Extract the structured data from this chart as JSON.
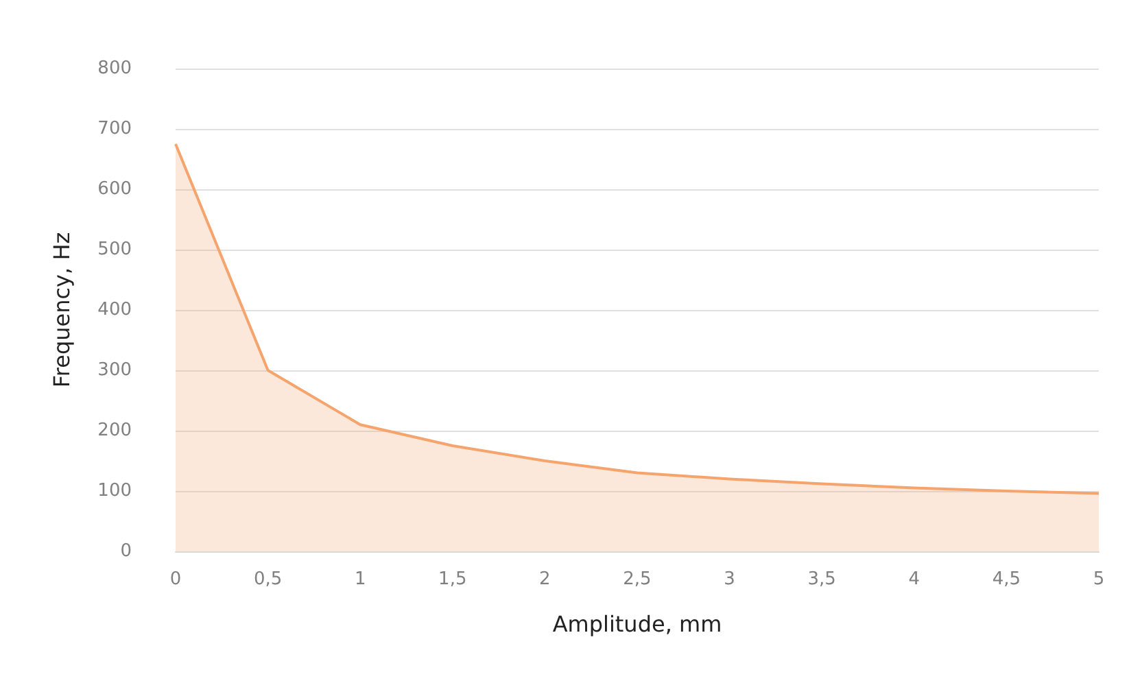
{
  "chart_data": {
    "type": "area",
    "xlabel": "Amplitude, mm",
    "ylabel": "Frequency, Hz",
    "x": [
      0,
      0.5,
      1,
      1.5,
      2,
      2.5,
      3,
      3.5,
      4,
      4.5,
      5
    ],
    "series": [
      {
        "color": "#f4a46c",
        "values": [
          675,
          300,
          210,
          175,
          150,
          130,
          120,
          112,
          105,
          100,
          96
        ]
      }
    ],
    "xlim": [
      0,
      5
    ],
    "xticks": [
      0,
      {
        "value": 0.5,
        "label": "0,5"
      },
      1,
      {
        "value": 1.5,
        "label": "1,5"
      },
      2,
      {
        "value": 2.5,
        "label": "2,5"
      },
      3,
      {
        "value": 3.5,
        "label": "3,5"
      },
      4,
      {
        "value": 4.5,
        "label": "4,5"
      },
      5
    ],
    "ylim": [
      0,
      800
    ],
    "yticks": [
      0,
      100,
      200,
      300,
      400,
      500,
      600,
      700,
      800
    ],
    "grid": "y",
    "marker": "none"
  }
}
